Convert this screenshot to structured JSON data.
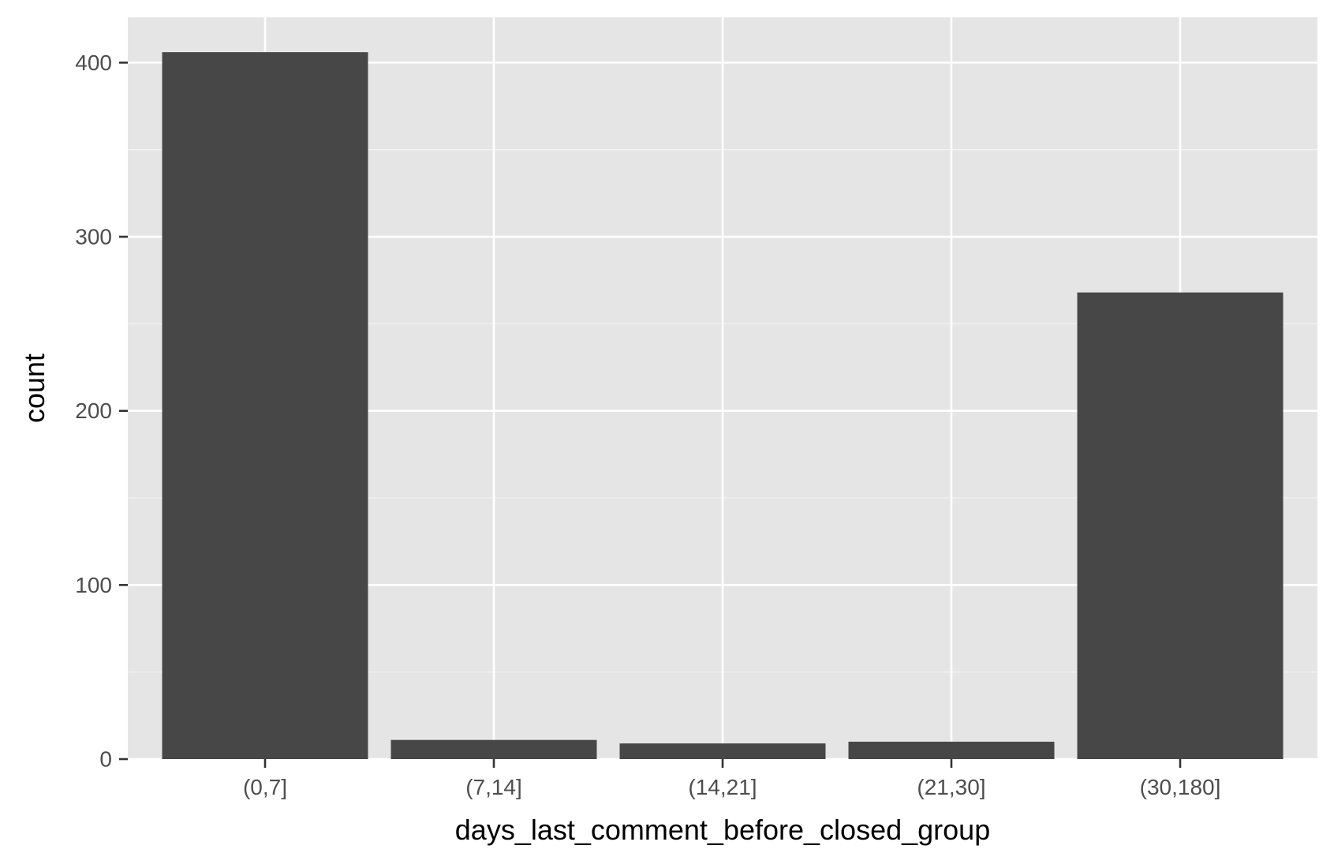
{
  "chart_data": {
    "type": "bar",
    "title": "",
    "xlabel": "days_last_comment_before_closed_group",
    "ylabel": "count",
    "categories": [
      "(0,7]",
      "(7,14]",
      "(14,21]",
      "(21,30]",
      "(30,180]"
    ],
    "values": [
      406,
      11,
      9,
      10,
      268
    ],
    "ylim": [
      0,
      426
    ],
    "yticks": [
      0,
      100,
      200,
      300,
      400
    ],
    "grid": true,
    "legend": "none",
    "colors": {
      "panel_background": "#e5e5e5",
      "grid_major": "#ffffff",
      "grid_minor": "#f2f2f2",
      "bar_fill": "#474747",
      "tick_text": "#4d4d4d",
      "axis_title": "#000000",
      "tick_mark": "#333333"
    }
  }
}
